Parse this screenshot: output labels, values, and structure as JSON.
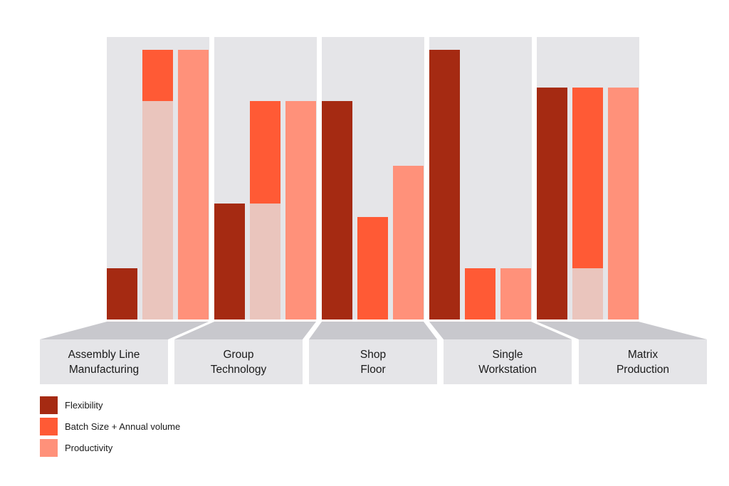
{
  "chart_data": {
    "type": "bar",
    "stacked_partial": true,
    "categories": [
      [
        "Assembly Line",
        "Manufacturing"
      ],
      [
        "Group",
        "Technology"
      ],
      [
        "Shop",
        "Floor"
      ],
      [
        "Single",
        "Workstation"
      ],
      [
        "Matrix",
        "Production"
      ]
    ],
    "ylim": [
      0,
      100
    ],
    "grid": false,
    "series": [
      {
        "name": "Flexibility",
        "color": "#a52a12",
        "values": [
          [
            0,
            19
          ],
          [
            0,
            43
          ],
          [
            0,
            81
          ],
          [
            0,
            100
          ],
          [
            0,
            86
          ]
        ]
      },
      {
        "name": "Batch Size + Annual volume",
        "color": "#ff5a35",
        "shadow_color": "#eac5bd",
        "values": [
          [
            81,
            100
          ],
          [
            43,
            81
          ],
          [
            0,
            38
          ],
          [
            0,
            19
          ],
          [
            19,
            86
          ]
        ]
      },
      {
        "name": "Productivity",
        "color": "#ff917a",
        "values": [
          [
            0,
            100
          ],
          [
            0,
            81
          ],
          [
            0,
            57
          ],
          [
            0,
            19
          ],
          [
            0,
            86
          ]
        ]
      }
    ],
    "colors": {
      "panel": "#e5e5e8",
      "label_box": "#e5e5e8",
      "shelf": "#c8c8cd"
    }
  },
  "legend": {
    "items": [
      {
        "label": "Flexibility",
        "color": "#a52a12"
      },
      {
        "label": "Batch Size + Annual volume",
        "color": "#ff5a35"
      },
      {
        "label": "Productivity",
        "color": "#ff917a"
      }
    ]
  }
}
